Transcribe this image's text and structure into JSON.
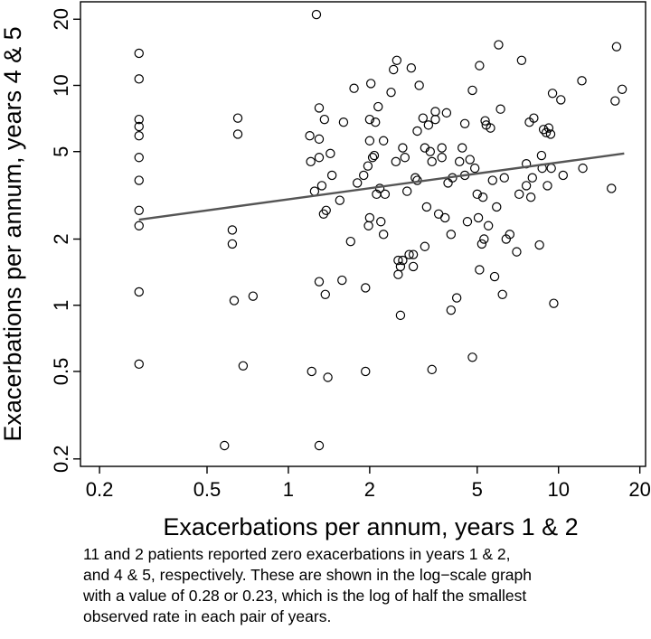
{
  "chart_data": {
    "type": "scatter",
    "title": "",
    "xlabel": "Exacerbations per annum, years 1 & 2",
    "ylabel": "Exacerbations per annum, years 4 & 5",
    "xscale": "log",
    "yscale": "log",
    "xlim": [
      0.17,
      21
    ],
    "ylim": [
      0.185,
      24
    ],
    "xticks": [
      0.2,
      0.5,
      1,
      2,
      5,
      10,
      20
    ],
    "xtick_labels": [
      "0.2",
      "0.5",
      "1",
      "2",
      "5",
      "10",
      "20"
    ],
    "yticks": [
      0.2,
      0.5,
      1,
      2,
      5,
      10,
      20
    ],
    "ytick_labels": [
      "0.2",
      "0.5",
      "1",
      "2",
      "5",
      "10",
      "20"
    ],
    "grid": false,
    "series": [
      {
        "name": "patients",
        "marker": "open-circle",
        "points": [
          [
            0.28,
            14.0
          ],
          [
            0.28,
            10.7
          ],
          [
            0.28,
            7.0
          ],
          [
            0.28,
            6.5
          ],
          [
            0.28,
            5.9
          ],
          [
            0.28,
            4.7
          ],
          [
            0.28,
            3.7
          ],
          [
            0.28,
            2.7
          ],
          [
            0.28,
            2.3
          ],
          [
            0.28,
            1.15
          ],
          [
            0.28,
            0.54
          ],
          [
            0.58,
            0.23
          ],
          [
            0.62,
            2.2
          ],
          [
            0.62,
            1.9
          ],
          [
            0.63,
            1.05
          ],
          [
            0.65,
            7.1
          ],
          [
            0.65,
            6.0
          ],
          [
            0.68,
            0.53
          ],
          [
            0.74,
            1.1
          ],
          [
            1.2,
            5.9
          ],
          [
            1.21,
            4.5
          ],
          [
            1.22,
            0.5
          ],
          [
            1.25,
            3.3
          ],
          [
            1.27,
            21
          ],
          [
            1.3,
            7.9
          ],
          [
            1.3,
            5.7
          ],
          [
            1.3,
            4.7
          ],
          [
            1.3,
            1.28
          ],
          [
            1.3,
            0.23
          ],
          [
            1.33,
            3.5
          ],
          [
            1.35,
            2.6
          ],
          [
            1.36,
            7.0
          ],
          [
            1.37,
            1.12
          ],
          [
            1.38,
            2.7
          ],
          [
            1.4,
            0.47
          ],
          [
            1.43,
            4.9
          ],
          [
            1.45,
            3.9
          ],
          [
            1.55,
            3.0
          ],
          [
            1.58,
            1.3
          ],
          [
            1.6,
            6.8
          ],
          [
            1.7,
            1.95
          ],
          [
            1.75,
            9.7
          ],
          [
            1.8,
            3.6
          ],
          [
            1.9,
            3.9
          ],
          [
            1.93,
            1.2
          ],
          [
            1.93,
            0.5
          ],
          [
            1.97,
            4.3
          ],
          [
            1.98,
            2.3
          ],
          [
            2.0,
            7.0
          ],
          [
            2.0,
            5.6
          ],
          [
            2.0,
            2.5
          ],
          [
            2.02,
            10.2
          ],
          [
            2.05,
            4.7
          ],
          [
            2.08,
            4.8
          ],
          [
            2.1,
            6.8
          ],
          [
            2.12,
            3.2
          ],
          [
            2.15,
            8.0
          ],
          [
            2.18,
            3.4
          ],
          [
            2.2,
            2.4
          ],
          [
            2.25,
            5.6
          ],
          [
            2.28,
            3.2
          ],
          [
            2.25,
            2.1
          ],
          [
            2.4,
            9.3
          ],
          [
            2.45,
            11.8
          ],
          [
            2.5,
            4.5
          ],
          [
            2.52,
            13.0
          ],
          [
            2.55,
            1.38
          ],
          [
            2.55,
            1.6
          ],
          [
            2.6,
            1.5
          ],
          [
            2.6,
            0.9
          ],
          [
            2.65,
            5.2
          ],
          [
            2.65,
            1.6
          ],
          [
            2.7,
            4.7
          ],
          [
            2.75,
            3.3
          ],
          [
            2.8,
            1.7
          ],
          [
            2.85,
            12.0
          ],
          [
            2.9,
            1.7
          ],
          [
            2.9,
            1.5
          ],
          [
            2.95,
            3.8
          ],
          [
            3.0,
            6.2
          ],
          [
            3.0,
            3.7
          ],
          [
            3.05,
            10.0
          ],
          [
            3.15,
            7.1
          ],
          [
            3.2,
            5.2
          ],
          [
            3.2,
            1.85
          ],
          [
            3.25,
            2.8
          ],
          [
            3.3,
            6.6
          ],
          [
            3.35,
            5.0
          ],
          [
            3.4,
            4.5
          ],
          [
            3.4,
            0.51
          ],
          [
            3.5,
            7.0
          ],
          [
            3.5,
            7.6
          ],
          [
            3.6,
            2.6
          ],
          [
            3.7,
            5.2
          ],
          [
            3.7,
            4.7
          ],
          [
            3.8,
            2.5
          ],
          [
            3.85,
            7.5
          ],
          [
            3.9,
            3.6
          ],
          [
            4.0,
            0.95
          ],
          [
            4.0,
            2.1
          ],
          [
            4.05,
            3.8
          ],
          [
            4.2,
            1.08
          ],
          [
            4.3,
            4.5
          ],
          [
            4.4,
            5.2
          ],
          [
            4.5,
            6.7
          ],
          [
            4.5,
            3.9
          ],
          [
            4.6,
            2.4
          ],
          [
            4.7,
            4.6
          ],
          [
            4.8,
            0.58
          ],
          [
            4.8,
            9.5
          ],
          [
            4.9,
            4.2
          ],
          [
            5.0,
            3.2
          ],
          [
            5.05,
            2.5
          ],
          [
            5.1,
            1.45
          ],
          [
            5.1,
            12.3
          ],
          [
            5.2,
            1.9
          ],
          [
            5.25,
            3.1
          ],
          [
            5.3,
            2.0
          ],
          [
            5.35,
            6.9
          ],
          [
            5.4,
            6.6
          ],
          [
            5.5,
            2.3
          ],
          [
            5.6,
            6.4
          ],
          [
            5.7,
            3.7
          ],
          [
            5.8,
            1.35
          ],
          [
            5.9,
            2.8
          ],
          [
            6.0,
            15.3
          ],
          [
            6.1,
            7.8
          ],
          [
            6.2,
            1.12
          ],
          [
            6.3,
            3.8
          ],
          [
            6.4,
            2.0
          ],
          [
            6.6,
            2.1
          ],
          [
            7.0,
            1.75
          ],
          [
            7.15,
            3.2
          ],
          [
            7.3,
            13.0
          ],
          [
            7.6,
            3.5
          ],
          [
            7.6,
            4.4
          ],
          [
            7.8,
            6.8
          ],
          [
            7.9,
            3.1
          ],
          [
            8.0,
            3.8
          ],
          [
            8.1,
            7.1
          ],
          [
            8.5,
            1.88
          ],
          [
            8.65,
            4.8
          ],
          [
            8.7,
            4.2
          ],
          [
            8.8,
            6.3
          ],
          [
            9.0,
            6.1
          ],
          [
            9.1,
            3.5
          ],
          [
            9.2,
            6.4
          ],
          [
            9.35,
            6.0
          ],
          [
            9.4,
            4.2
          ],
          [
            9.5,
            9.2
          ],
          [
            9.6,
            1.02
          ],
          [
            10.2,
            8.6
          ],
          [
            10.4,
            3.9
          ],
          [
            12.2,
            10.5
          ],
          [
            12.3,
            4.2
          ],
          [
            15.7,
            3.4
          ],
          [
            16.2,
            8.5
          ],
          [
            16.4,
            15.0
          ],
          [
            17.2,
            9.6
          ]
        ]
      }
    ],
    "fit_line": {
      "name": "regression",
      "x": [
        0.28,
        17.5
      ],
      "y": [
        2.45,
        4.9
      ],
      "color": "#555555"
    }
  },
  "caption": {
    "lines": [
      "11 and 2 patients reported zero exacerbations in years 1 & 2,",
      "and 4 & 5, respectively. These are shown in the log−scale graph",
      "with a value of 0.28 or 0.23, which is the log of half the smallest",
      "observed rate in each pair of years."
    ]
  }
}
